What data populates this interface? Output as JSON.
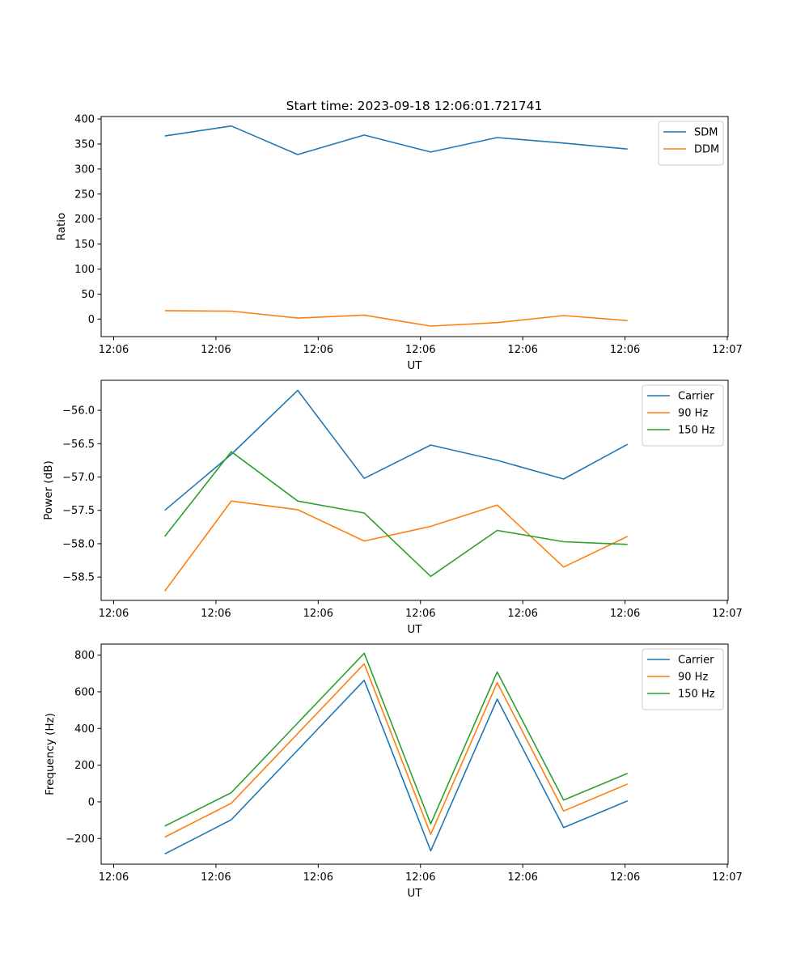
{
  "figure_title": "Start time: 2023-09-18 12:06:01.721741",
  "chart_data": [
    {
      "type": "line",
      "xlabel": "UT",
      "ylabel": "Ratio",
      "x_ticks": [
        "12:06",
        "12:06",
        "12:06",
        "12:06",
        "12:06",
        "12:06",
        "12:07"
      ],
      "ylim": [
        -35,
        405
      ],
      "y_ticks": [
        0,
        50,
        100,
        150,
        200,
        250,
        300,
        350,
        400
      ],
      "legend": "top-right",
      "series": [
        {
          "name": "SDM",
          "color": "#1f77b4",
          "values": [
            366,
            386,
            329,
            368,
            334,
            363,
            352,
            340
          ]
        },
        {
          "name": "DDM",
          "color": "#ff7f0e",
          "values": [
            17,
            16,
            2,
            8,
            -14,
            -7,
            7,
            -3
          ]
        }
      ]
    },
    {
      "type": "line",
      "xlabel": "UT",
      "ylabel": "Power (dB)",
      "x_ticks": [
        "12:06",
        "12:06",
        "12:06",
        "12:06",
        "12:06",
        "12:06",
        "12:07"
      ],
      "ylim": [
        -58.85,
        -55.55
      ],
      "y_ticks": [
        -58.5,
        -58.0,
        -57.5,
        -57.0,
        -56.5,
        -56.0
      ],
      "legend": "top-right",
      "series": [
        {
          "name": "Carrier",
          "color": "#1f77b4",
          "values": [
            -57.5,
            -56.66,
            -55.7,
            -57.02,
            -56.52,
            -56.75,
            -57.03,
            -56.51
          ]
        },
        {
          "name": "90 Hz",
          "color": "#ff7f0e",
          "values": [
            -58.71,
            -57.36,
            -57.49,
            -57.96,
            -57.74,
            -57.42,
            -58.35,
            -57.89
          ]
        },
        {
          "name": "150 Hz",
          "color": "#2ca02c",
          "values": [
            -57.89,
            -56.62,
            -57.36,
            -57.54,
            -58.49,
            -57.8,
            -57.97,
            -58.01
          ]
        }
      ]
    },
    {
      "type": "line",
      "xlabel": "UT",
      "ylabel": "Frequency (Hz)",
      "x_ticks": [
        "12:06",
        "12:06",
        "12:06",
        "12:06",
        "12:06",
        "12:06",
        "12:07"
      ],
      "ylim": [
        -340,
        860
      ],
      "y_ticks": [
        -200,
        0,
        200,
        400,
        600,
        800
      ],
      "legend": "top-right",
      "series": [
        {
          "name": "Carrier",
          "color": "#1f77b4",
          "values": [
            -284,
            -98,
            282,
            663,
            -267,
            560,
            -140,
            5
          ]
        },
        {
          "name": "90 Hz",
          "color": "#ff7f0e",
          "values": [
            -192,
            -8,
            372,
            753,
            -177,
            650,
            -50,
            97
          ]
        },
        {
          "name": "150 Hz",
          "color": "#2ca02c",
          "values": [
            -132,
            50,
            430,
            810,
            -120,
            708,
            10,
            155
          ]
        }
      ]
    }
  ]
}
